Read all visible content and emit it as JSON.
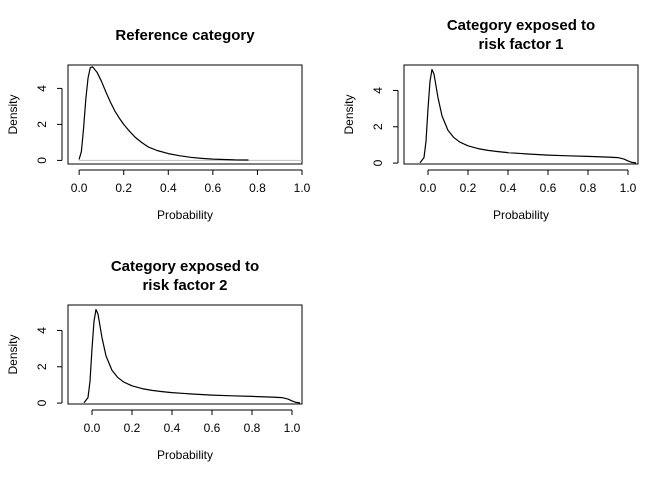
{
  "chart_data": [
    {
      "type": "line",
      "title_lines": [
        "Reference category"
      ],
      "xlabel": "Probability",
      "ylabel": "Density",
      "xlim": [
        -0.05,
        1.0
      ],
      "ylim": [
        -0.2,
        5.3
      ],
      "xticks": [
        0.0,
        0.2,
        0.4,
        0.6,
        0.8,
        1.0
      ],
      "xtick_labels": [
        "0.0",
        "0.2",
        "0.4",
        "0.6",
        "0.8",
        "1.0"
      ],
      "yticks": [
        0,
        2,
        4
      ],
      "ytick_labels": [
        "0",
        "2",
        "4"
      ],
      "baseline": true,
      "x": [
        0.0,
        0.01,
        0.02,
        0.03,
        0.04,
        0.05,
        0.06,
        0.08,
        0.1,
        0.12,
        0.14,
        0.16,
        0.18,
        0.2,
        0.22,
        0.25,
        0.28,
        0.31,
        0.35,
        0.4,
        0.45,
        0.5,
        0.55,
        0.6,
        0.65,
        0.7,
        0.76
      ],
      "y": [
        0.05,
        0.5,
        1.8,
        3.4,
        4.6,
        5.15,
        5.2,
        4.9,
        4.4,
        3.8,
        3.25,
        2.75,
        2.35,
        2.0,
        1.7,
        1.3,
        1.0,
        0.75,
        0.55,
        0.38,
        0.26,
        0.17,
        0.11,
        0.07,
        0.05,
        0.03,
        0.02
      ]
    },
    {
      "type": "line",
      "title_lines": [
        "Category exposed to",
        "risk factor 1"
      ],
      "xlabel": "Probability",
      "ylabel": "Density",
      "xlim": [
        -0.12,
        1.05
      ],
      "ylim": [
        -0.05,
        5.4
      ],
      "xticks": [
        0.0,
        0.2,
        0.4,
        0.6,
        0.8,
        1.0
      ],
      "xtick_labels": [
        "0.0",
        "0.2",
        "0.4",
        "0.6",
        "0.8",
        "1.0"
      ],
      "yticks": [
        0,
        2,
        4
      ],
      "ytick_labels": [
        "0",
        "2",
        "4"
      ],
      "baseline": false,
      "x": [
        -0.04,
        -0.02,
        -0.01,
        0.0,
        0.01,
        0.02,
        0.03,
        0.05,
        0.07,
        0.1,
        0.13,
        0.16,
        0.2,
        0.25,
        0.3,
        0.35,
        0.4,
        0.45,
        0.5,
        0.6,
        0.7,
        0.8,
        0.9,
        0.95,
        0.98,
        1.0,
        1.02,
        1.04
      ],
      "y": [
        0.02,
        0.3,
        1.2,
        3.0,
        4.5,
        5.15,
        4.9,
        3.6,
        2.6,
        1.8,
        1.4,
        1.15,
        0.95,
        0.8,
        0.7,
        0.63,
        0.58,
        0.54,
        0.5,
        0.44,
        0.4,
        0.37,
        0.33,
        0.3,
        0.22,
        0.12,
        0.04,
        0.01
      ]
    },
    {
      "type": "line",
      "title_lines": [
        "Category exposed to",
        "risk factor 2"
      ],
      "xlabel": "Probability",
      "ylabel": "Density",
      "xlim": [
        -0.12,
        1.05
      ],
      "ylim": [
        -0.05,
        5.4
      ],
      "xticks": [
        0.0,
        0.2,
        0.4,
        0.6,
        0.8,
        1.0
      ],
      "xtick_labels": [
        "0.0",
        "0.2",
        "0.4",
        "0.6",
        "0.8",
        "1.0"
      ],
      "yticks": [
        0,
        2,
        4
      ],
      "ytick_labels": [
        "0",
        "2",
        "4"
      ],
      "baseline": false,
      "x": [
        -0.04,
        -0.02,
        -0.01,
        0.0,
        0.01,
        0.02,
        0.03,
        0.05,
        0.07,
        0.1,
        0.13,
        0.16,
        0.2,
        0.25,
        0.3,
        0.35,
        0.4,
        0.45,
        0.5,
        0.6,
        0.7,
        0.8,
        0.9,
        0.95,
        0.98,
        1.0,
        1.02,
        1.04
      ],
      "y": [
        0.02,
        0.3,
        1.2,
        3.0,
        4.5,
        5.15,
        4.9,
        3.6,
        2.6,
        1.8,
        1.4,
        1.15,
        0.95,
        0.8,
        0.7,
        0.63,
        0.58,
        0.54,
        0.5,
        0.44,
        0.4,
        0.37,
        0.33,
        0.3,
        0.22,
        0.12,
        0.04,
        0.01
      ]
    }
  ]
}
